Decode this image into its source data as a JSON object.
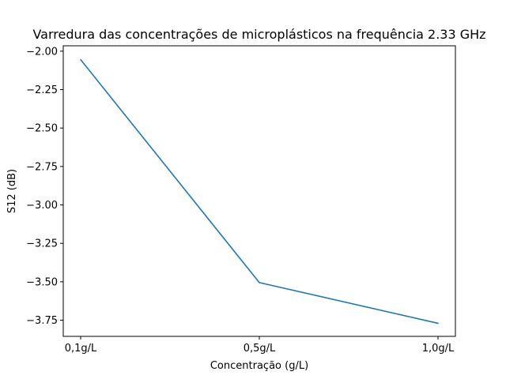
{
  "chart_data": {
    "type": "line",
    "title": "Varredura das concentrações de microplásticos na frequência 2.33 GHz",
    "xlabel": "Concentração (g/L)",
    "ylabel": "S12 (dB)",
    "categories": [
      "0,1g/L",
      "0,5g/L",
      "1,0g/L"
    ],
    "series": [
      {
        "values": [
          -2.055,
          -3.505,
          -3.77
        ],
        "color": "#1f77b4"
      }
    ],
    "ylim": [
      -3.855,
      -1.965
    ],
    "yticks": [
      -2.0,
      -2.25,
      -2.5,
      -2.75,
      -3.0,
      -3.25,
      -3.5,
      -3.75
    ],
    "ytick_labels": [
      "−2.00",
      "−2.25",
      "−2.50",
      "−2.75",
      "−3.00",
      "−3.25",
      "−3.50",
      "−3.75"
    ],
    "grid": false,
    "legend": false
  }
}
